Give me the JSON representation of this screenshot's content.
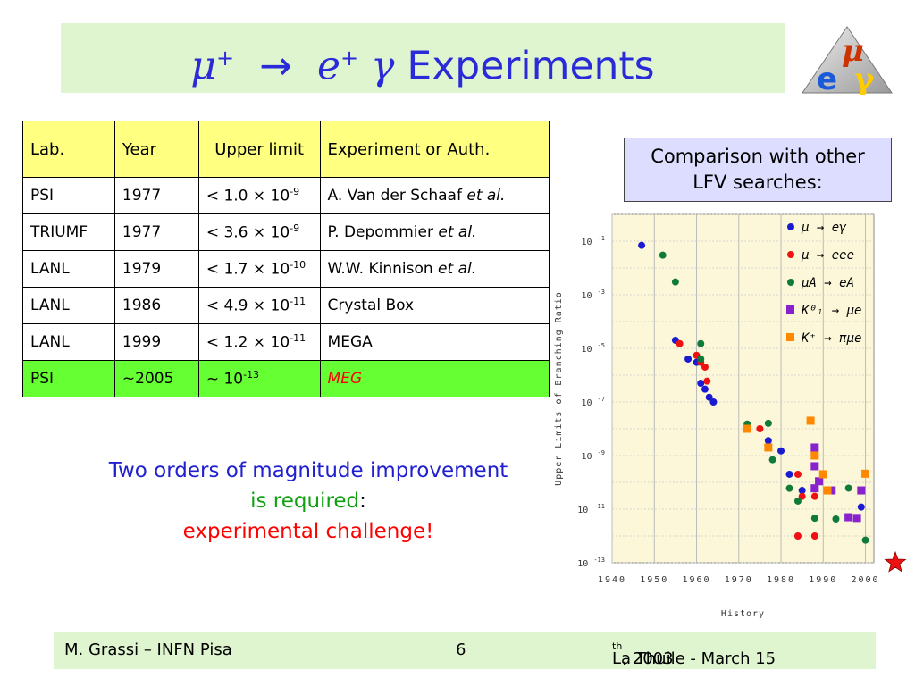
{
  "title": {
    "mu": "μ",
    "mu_sup": "+",
    "arrow": "→",
    "e": "e",
    "e_sup": "+",
    "gamma": "γ",
    "text": "Experiments"
  },
  "logo": {
    "letters": [
      "μ",
      "e",
      "γ"
    ],
    "colors": {
      "mu": "#cc3300",
      "e": "#1a5ad8",
      "gamma": "#ffcc00"
    }
  },
  "table": {
    "headers": [
      "Lab.",
      "Year",
      "Upper limit",
      "Experiment or Auth."
    ],
    "rows": [
      {
        "lab": "PSI",
        "year": "1977",
        "limit": "< 1.0 × 10",
        "exp": "-9",
        "auth": "A. Van der Schaaf",
        "etal": "et al."
      },
      {
        "lab": "TRIUMF",
        "year": "1977",
        "limit": "< 3.6 × 10",
        "exp": "-9",
        "auth": "P. Depommier",
        "etal": "et al."
      },
      {
        "lab": "LANL",
        "year": "1979",
        "limit": "< 1.7 × 10",
        "exp": "-10",
        "auth": "W.W. Kinnison",
        "etal": "et al."
      },
      {
        "lab": "LANL",
        "year": "1986",
        "limit": "< 4.9 × 10",
        "exp": "-11",
        "auth": "Crystal Box",
        "etal": ""
      },
      {
        "lab": "LANL",
        "year": "1999",
        "limit": "< 1.2 × 10",
        "exp": "-11",
        "auth": "MEGA",
        "etal": ""
      }
    ],
    "highlight": {
      "lab": "PSI",
      "year": "~2005",
      "limit": "~ 10",
      "exp": "-13",
      "auth": "MEG"
    }
  },
  "comparison": {
    "line1": "Comparison with other",
    "line2": "LFV searches:"
  },
  "note": {
    "line1": "Two orders of magnitude improvement",
    "line2": "is required",
    "colon": ":",
    "line3": "experimental challenge!"
  },
  "chart_data": {
    "type": "scatter",
    "title": "",
    "xlabel": "History",
    "ylabel": "Upper Limits of Branching Ratio",
    "xlim": [
      1940,
      2002
    ],
    "ylim": [
      1e-13,
      1.0
    ],
    "yscale": "log",
    "grid": true,
    "background": "#fbf7d8",
    "x_ticks": [
      "1940",
      "1950",
      "1960",
      "1970",
      "1980",
      "1990",
      "2000"
    ],
    "y_ticks": [
      {
        "base": "10",
        "exp": "-1"
      },
      {
        "base": "10",
        "exp": "-3"
      },
      {
        "base": "10",
        "exp": "-5"
      },
      {
        "base": "10",
        "exp": "-7"
      },
      {
        "base": "10",
        "exp": "-9"
      },
      {
        "base": "10",
        "exp": "-11"
      },
      {
        "base": "10",
        "exp": "-13"
      }
    ],
    "legend_position": "top-right",
    "series": [
      {
        "name": "μ → eγ",
        "color": "#1a1ad0",
        "marker": "circle",
        "points": [
          [
            1947,
            0.07
          ],
          [
            1955,
            2e-05
          ],
          [
            1958,
            4e-06
          ],
          [
            1960,
            3e-06
          ],
          [
            1961,
            5e-07
          ],
          [
            1962,
            3e-07
          ],
          [
            1963,
            1.5e-07
          ],
          [
            1964,
            1e-07
          ],
          [
            1977,
            3.6e-09
          ],
          [
            1980,
            1.5e-09
          ],
          [
            1982,
            2e-10
          ],
          [
            1985,
            5e-11
          ],
          [
            1999,
            1.2e-11
          ]
        ]
      },
      {
        "name": "μ → eee",
        "color": "#ee1111",
        "marker": "circle",
        "points": [
          [
            1956,
            1.5e-05
          ],
          [
            1960,
            5.5e-06
          ],
          [
            1961,
            3e-06
          ],
          [
            1962,
            2e-06
          ],
          [
            1962.5,
            6e-07
          ],
          [
            1975,
            1e-08
          ],
          [
            1977,
            2e-09
          ],
          [
            1984,
            2e-10
          ],
          [
            1985,
            3e-11
          ],
          [
            1988,
            3e-11
          ],
          [
            1988,
            1e-12
          ],
          [
            1984,
            1e-12
          ]
        ]
      },
      {
        "name": "μA → eA",
        "color": "#0f7a3a",
        "marker": "circle",
        "points": [
          [
            1952,
            0.03
          ],
          [
            1955,
            0.003
          ],
          [
            1961,
            1.5e-05
          ],
          [
            1961,
            4e-06
          ],
          [
            1972,
            1.5e-08
          ],
          [
            1977,
            1.6e-08
          ],
          [
            1978,
            7e-10
          ],
          [
            1982,
            6e-11
          ],
          [
            1984,
            2e-11
          ],
          [
            1988,
            4.6e-12
          ],
          [
            1993,
            4.3e-12
          ],
          [
            1996,
            6.1e-11
          ],
          [
            2000,
            7e-13
          ]
        ]
      },
      {
        "name": "K⁰ₗ → μe",
        "color": "#8822cc",
        "marker": "square",
        "points": [
          [
            1988,
            2e-09
          ],
          [
            1988,
            4e-10
          ],
          [
            1988,
            6e-11
          ],
          [
            1989,
            1.1e-10
          ],
          [
            1992,
            5e-11
          ],
          [
            1996,
            5e-12
          ],
          [
            1998,
            4.7e-12
          ],
          [
            1999,
            5e-11
          ]
        ]
      },
      {
        "name": "K⁺ → πμe",
        "color": "#ff8800",
        "marker": "square",
        "points": [
          [
            1972,
            1e-08
          ],
          [
            1977,
            2e-09
          ],
          [
            1987,
            2e-08
          ],
          [
            1988,
            1e-09
          ],
          [
            1990,
            2e-10
          ],
          [
            1991,
            5e-11
          ],
          [
            2000,
            2.1e-10
          ]
        ]
      }
    ],
    "target_marker": {
      "x": 2005,
      "y": 1e-13,
      "color": "#ee1111",
      "shape": "star"
    }
  },
  "footer": {
    "left": "M. Grassi – INFN Pisa",
    "page": "6",
    "right_pre": "La Thuile -  March 15",
    "right_sup": "th",
    "right_post": " , 2003"
  }
}
